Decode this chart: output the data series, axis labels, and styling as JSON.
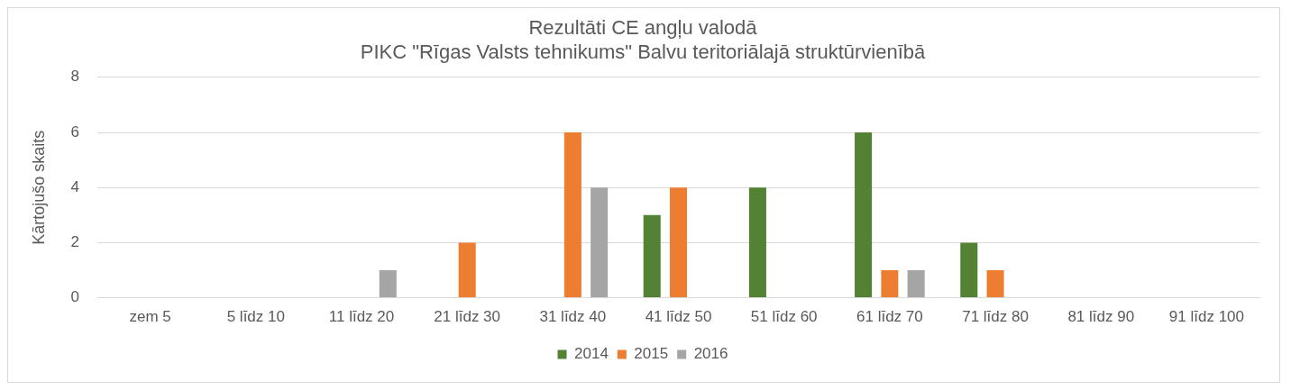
{
  "chart_data": {
    "type": "bar",
    "title": "Rezultāti CE angļu valodā",
    "subtitle": "PIKC \"Rīgas Valsts tehnikums\" Balvu teritoriālajā struktūrvienībā",
    "ylabel": "Kārtojušo skaits",
    "categories": [
      "zem 5",
      "5 līdz 10",
      "11 līdz 20",
      "21 līdz 30",
      "31 līdz 40",
      "41 līdz 50",
      "51 līdz 60",
      "61 līdz 70",
      "71 līdz 80",
      "81 līdz 90",
      "91 līdz 100"
    ],
    "series": [
      {
        "name": "2014",
        "color": "#548235",
        "values": [
          0,
          0,
          0,
          0,
          0,
          3,
          4,
          6,
          2,
          0,
          0
        ]
      },
      {
        "name": "2015",
        "color": "#ed7d31",
        "values": [
          0,
          0,
          0,
          2,
          6,
          4,
          0,
          1,
          1,
          0,
          0
        ]
      },
      {
        "name": "2016",
        "color": "#a5a5a5",
        "values": [
          0,
          0,
          1,
          0,
          4,
          0,
          0,
          1,
          0,
          0,
          0
        ]
      }
    ],
    "ylim": [
      0,
      8
    ],
    "yticks": [
      0,
      2,
      4,
      6,
      8
    ],
    "grid": "y",
    "legend": "bottom"
  }
}
